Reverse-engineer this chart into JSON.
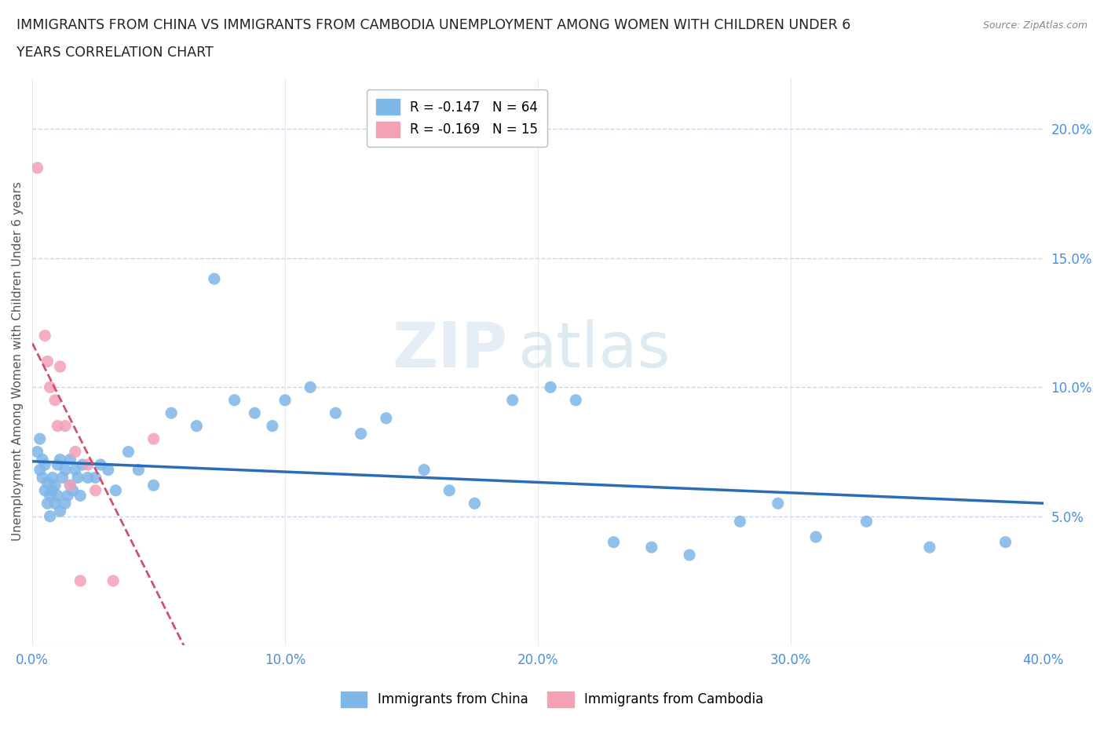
{
  "title_line1": "IMMIGRANTS FROM CHINA VS IMMIGRANTS FROM CAMBODIA UNEMPLOYMENT AMONG WOMEN WITH CHILDREN UNDER 6",
  "title_line2": "YEARS CORRELATION CHART",
  "source": "Source: ZipAtlas.com",
  "ylabel": "Unemployment Among Women with Children Under 6 years",
  "xlim": [
    0.0,
    0.4
  ],
  "ylim": [
    0.0,
    0.22
  ],
  "xticks": [
    0.0,
    0.1,
    0.2,
    0.3,
    0.4
  ],
  "yticks_right": [
    0.05,
    0.1,
    0.15,
    0.2
  ],
  "legend_china": "R = -0.147   N = 64",
  "legend_cambodia": "R = -0.169   N = 15",
  "color_china": "#7EB6E8",
  "color_cambodia": "#F4A0B5",
  "color_china_line": "#2B6CB8",
  "color_cambodia_line": "#D05070",
  "watermark_zip": "ZIP",
  "watermark_atlas": "atlas",
  "china_x": [
    0.002,
    0.003,
    0.003,
    0.004,
    0.004,
    0.005,
    0.005,
    0.006,
    0.006,
    0.007,
    0.007,
    0.008,
    0.008,
    0.009,
    0.009,
    0.01,
    0.01,
    0.011,
    0.011,
    0.012,
    0.013,
    0.013,
    0.014,
    0.015,
    0.015,
    0.016,
    0.017,
    0.018,
    0.019,
    0.02,
    0.022,
    0.025,
    0.027,
    0.03,
    0.033,
    0.038,
    0.042,
    0.048,
    0.055,
    0.065,
    0.072,
    0.08,
    0.088,
    0.095,
    0.1,
    0.11,
    0.12,
    0.13,
    0.14,
    0.155,
    0.165,
    0.175,
    0.19,
    0.205,
    0.215,
    0.23,
    0.245,
    0.26,
    0.28,
    0.295,
    0.31,
    0.33,
    0.355,
    0.385
  ],
  "china_y": [
    0.075,
    0.08,
    0.068,
    0.065,
    0.072,
    0.06,
    0.07,
    0.063,
    0.055,
    0.058,
    0.05,
    0.06,
    0.065,
    0.055,
    0.062,
    0.07,
    0.058,
    0.072,
    0.052,
    0.065,
    0.055,
    0.068,
    0.058,
    0.062,
    0.072,
    0.06,
    0.068,
    0.065,
    0.058,
    0.07,
    0.065,
    0.065,
    0.07,
    0.068,
    0.06,
    0.075,
    0.068,
    0.062,
    0.09,
    0.085,
    0.142,
    0.095,
    0.09,
    0.085,
    0.095,
    0.1,
    0.09,
    0.082,
    0.088,
    0.068,
    0.06,
    0.055,
    0.095,
    0.1,
    0.095,
    0.04,
    0.038,
    0.035,
    0.048,
    0.055,
    0.042,
    0.048,
    0.038,
    0.04
  ],
  "cambodia_x": [
    0.002,
    0.005,
    0.006,
    0.007,
    0.009,
    0.01,
    0.011,
    0.013,
    0.015,
    0.017,
    0.019,
    0.022,
    0.025,
    0.032,
    0.048
  ],
  "cambodia_y": [
    0.185,
    0.12,
    0.11,
    0.1,
    0.095,
    0.085,
    0.108,
    0.085,
    0.062,
    0.075,
    0.025,
    0.07,
    0.06,
    0.025,
    0.08
  ]
}
